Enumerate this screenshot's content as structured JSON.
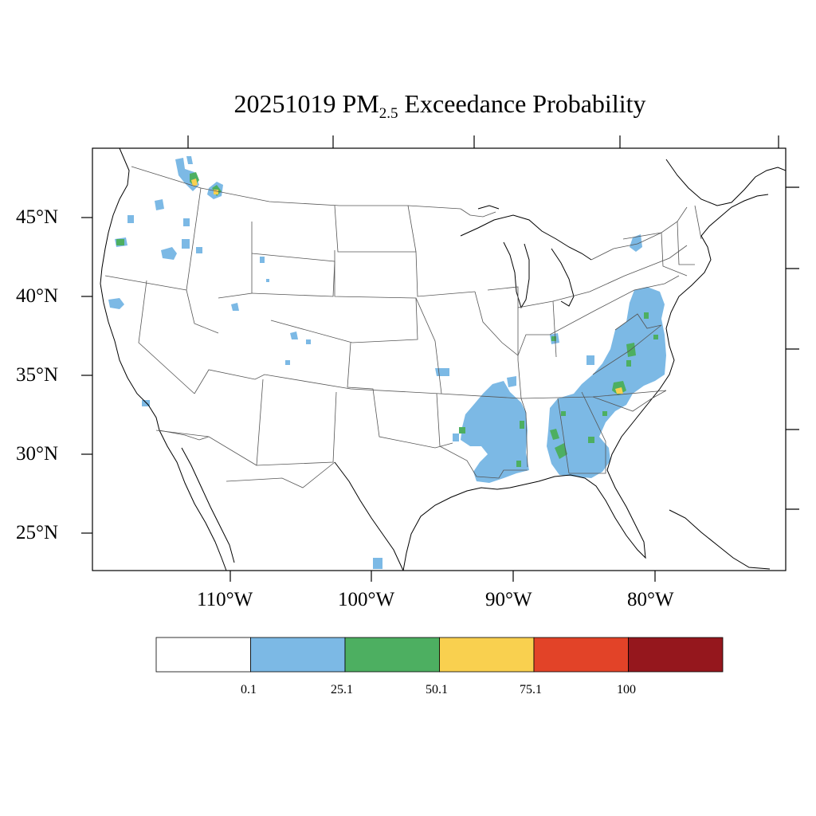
{
  "title": {
    "prefix": "20251019 PM",
    "subscript": "2.5",
    "suffix": " Exceedance Probability"
  },
  "lat_labels": [
    "45°N",
    "40°N",
    "35°N",
    "30°N",
    "25°N"
  ],
  "lon_labels": [
    "110°W",
    "100°W",
    "90°W",
    "80°W"
  ],
  "colorbar": {
    "colors": [
      "#ffffff",
      "#7cb9e5",
      "#4daf61",
      "#f9d04f",
      "#e24328",
      "#95171d"
    ],
    "labels": [
      "0.1",
      "25.1",
      "50.1",
      "75.1",
      "100"
    ]
  },
  "map_data": {
    "levels": [
      0.1,
      25.1,
      50.1,
      75.1,
      100
    ],
    "regions": [
      {
        "name": "Southeast (Mississippi–Alabama–Georgia–Carolinas–Virginia)",
        "probability_band": "0.1–25.1",
        "color": "#7cb9e5"
      },
      {
        "name": "Pacific Northwest / Northern Rockies patches",
        "probability_band": "0.1–25.1",
        "color": "#7cb9e5"
      },
      {
        "name": "Scattered hotspots in Alabama, Mississippi, Georgia, Virginia",
        "probability_band": "25.1–50.1",
        "color": "#4daf61"
      },
      {
        "name": "Small spots in Idaho/Montana and North Carolina",
        "probability_band": "50.1–75.1",
        "color": "#f9d04f"
      }
    ]
  }
}
